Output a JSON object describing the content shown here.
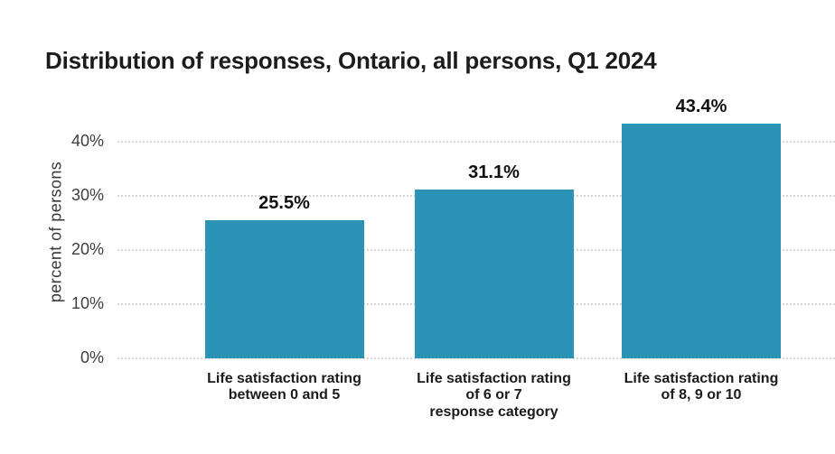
{
  "page": {
    "background": "#ffffff"
  },
  "chart_data": {
    "type": "bar",
    "title": "Distribution of responses, Ontario, all persons, Q1 2024",
    "categories": [
      [
        "Life satisfaction rating",
        "between 0 and 5"
      ],
      [
        "Life satisfaction rating",
        "of 6 or 7"
      ],
      [
        "Life satisfaction rating",
        "of 8, 9 or 10"
      ]
    ],
    "values": [
      25.5,
      31.1,
      43.4
    ],
    "data_labels": [
      "25.5%",
      "31.1%",
      "43.4%"
    ],
    "xlabel": "response category",
    "ylabel": "percent of persons",
    "yticks": [
      "0%",
      "10%",
      "20%",
      "30%",
      "40%"
    ],
    "ylim": [
      0,
      45
    ],
    "grid": "horizontal-dotted",
    "legend": "none",
    "bar_color": "#2b93b6",
    "gridline_color": "#d6d6d6"
  }
}
